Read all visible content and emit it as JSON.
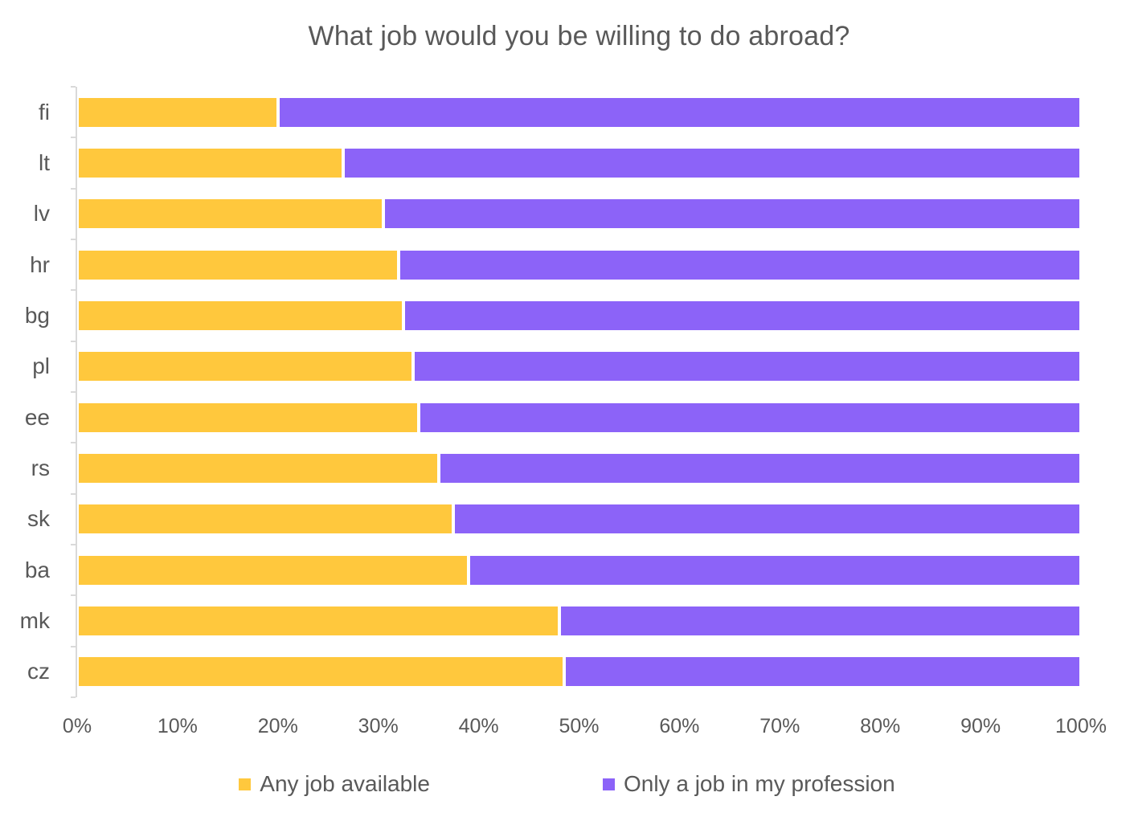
{
  "title": "What job would you be willing to do abroad?",
  "colors": {
    "background": "#ffffff",
    "text": "#595959",
    "axis_line": "#d9d9d9",
    "any_job": "#ffc83d",
    "profession": "#8c63f8"
  },
  "chart_data": {
    "type": "bar",
    "orientation": "horizontal",
    "stacked": true,
    "percent_stacked": true,
    "title": "What job would you be willing to do abroad?",
    "categories": [
      "fi",
      "lt",
      "lv",
      "hr",
      "bg",
      "pl",
      "ee",
      "rs",
      "sk",
      "ba",
      "mk",
      "cz"
    ],
    "series": [
      {
        "name": "Any job available",
        "color": "#ffc83d",
        "values": [
          20,
          26.5,
          30.5,
          32,
          32.5,
          33.5,
          34,
          36,
          37.5,
          39,
          48,
          48.5
        ]
      },
      {
        "name": "Only a job in my profession",
        "color": "#8c63f8",
        "values": [
          80,
          73.5,
          69.5,
          68,
          67.5,
          66.5,
          66,
          64,
          62.5,
          61,
          52,
          51.5
        ]
      }
    ],
    "x_axis": {
      "min": 0,
      "max": 100,
      "tick_labels": [
        "0%",
        "10%",
        "20%",
        "30%",
        "40%",
        "50%",
        "60%",
        "70%",
        "80%",
        "90%",
        "100%"
      ]
    },
    "grid": false,
    "legend_position": "bottom",
    "legend": [
      {
        "label": "Any job available",
        "color": "#ffc83d"
      },
      {
        "label": "Only a job in my profession",
        "color": "#8c63f8"
      }
    ]
  }
}
